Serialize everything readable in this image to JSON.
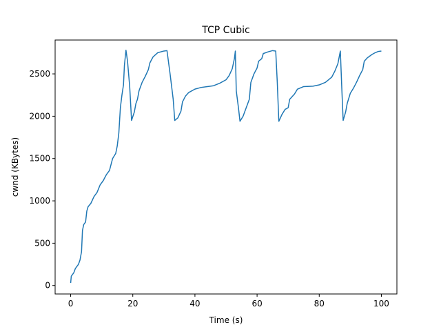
{
  "chart_data": {
    "type": "line",
    "title": "TCP Cubic",
    "x_label": "Time (s)",
    "y_label": "cwnd (KBytes)",
    "color": "#1f77b4",
    "x": [
      0,
      0.2,
      1,
      1.5,
      2.5,
      3,
      3.5,
      3.8,
      4.2,
      4.8,
      5.2,
      5.6,
      6.5,
      7.5,
      8.5,
      9.5,
      10.5,
      11.5,
      12.5,
      13,
      13.5,
      14.5,
      15,
      15.5,
      16,
      16.5,
      17,
      17.3,
      17.8,
      18.3,
      19,
      19.6,
      20.5,
      21,
      21.5,
      22,
      23,
      24,
      25,
      25.5,
      26.5,
      28,
      30,
      31,
      32,
      33,
      33.5,
      34.5,
      35.5,
      36,
      37,
      38,
      40,
      42,
      44,
      46,
      48,
      50,
      51,
      52,
      52.7,
      53,
      53.3,
      54,
      54.5,
      55.5,
      56.5,
      57.5,
      58,
      59,
      60,
      60.5,
      61.5,
      62,
      63.5,
      65,
      66,
      66.5,
      67,
      68,
      69,
      70,
      70.5,
      72,
      73,
      75,
      78,
      80,
      82,
      84,
      85,
      86,
      86.8,
      87.3,
      87.7,
      88.5,
      89,
      90,
      91,
      92,
      93,
      94,
      94.5,
      95.5,
      97,
      98,
      99,
      100
    ],
    "values": [
      30,
      110,
      150,
      200,
      250,
      300,
      400,
      650,
      720,
      750,
      880,
      930,
      970,
      1050,
      1100,
      1190,
      1240,
      1310,
      1360,
      1430,
      1500,
      1560,
      1650,
      1800,
      2100,
      2250,
      2370,
      2600,
      2780,
      2650,
      2350,
      1950,
      2050,
      2150,
      2200,
      2300,
      2400,
      2470,
      2550,
      2630,
      2700,
      2750,
      2770,
      2775,
      2500,
      2200,
      1950,
      1980,
      2060,
      2170,
      2240,
      2280,
      2320,
      2340,
      2350,
      2360,
      2390,
      2430,
      2480,
      2560,
      2680,
      2770,
      2300,
      2100,
      1940,
      2000,
      2100,
      2200,
      2400,
      2500,
      2570,
      2650,
      2680,
      2740,
      2760,
      2775,
      2770,
      2400,
      1940,
      2020,
      2080,
      2100,
      2200,
      2260,
      2320,
      2350,
      2355,
      2370,
      2400,
      2460,
      2530,
      2620,
      2770,
      2300,
      1950,
      2050,
      2150,
      2270,
      2330,
      2400,
      2480,
      2550,
      2650,
      2690,
      2730,
      2750,
      2765,
      2770
    ],
    "xlim": [
      -5,
      105
    ],
    "ylim": [
      -100,
      2900
    ],
    "xticks": [
      0,
      20,
      40,
      60,
      80,
      100
    ],
    "yticks": [
      0,
      500,
      1000,
      1500,
      2000,
      2500
    ]
  }
}
